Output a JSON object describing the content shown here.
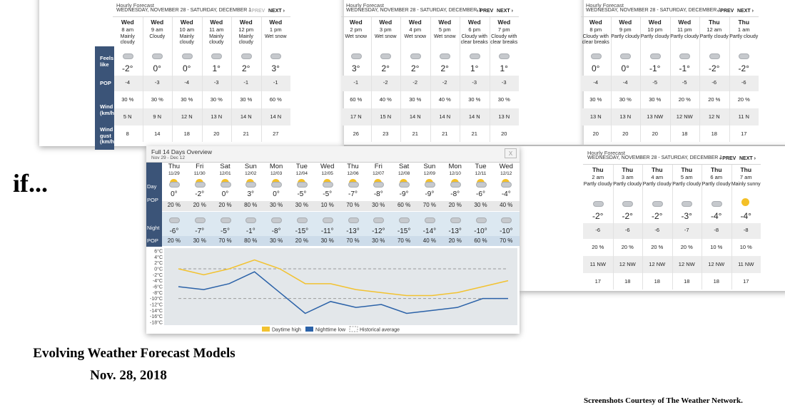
{
  "title_text": "if...",
  "caption": {
    "title": "Evolving Weather Forecast Models",
    "date": "Nov. 28, 2018",
    "credit": "Screenshots Courtesy of The Weather Network."
  },
  "hourly_panels": [
    {
      "heading": "Hourly Forecast",
      "range": "WEDNESDAY, NOVEMBER 28 - SATURDAY, DECEMBER 1",
      "prev": "‹ PREV",
      "next": "NEXT ›",
      "row_labels": [
        "Feels like",
        "POP",
        "Wind (km/h)",
        "Wind gust (km/h)"
      ],
      "columns": [
        {
          "day": "Wed",
          "time": "8 am",
          "condition": "Mainly cloudy",
          "temp": "-2°",
          "feels_like": "-4",
          "pop": "30 %",
          "wind": "5 N",
          "gust": "8"
        },
        {
          "day": "Wed",
          "time": "9 am",
          "condition": "Cloudy",
          "temp": "0°",
          "feels_like": "-3",
          "pop": "30 %",
          "wind": "9 N",
          "gust": "14"
        },
        {
          "day": "Wed",
          "time": "10 am",
          "condition": "Mainly cloudy",
          "temp": "0°",
          "feels_like": "-4",
          "pop": "30 %",
          "wind": "12 N",
          "gust": "18"
        },
        {
          "day": "Wed",
          "time": "11 am",
          "condition": "Mainly cloudy",
          "temp": "1°",
          "feels_like": "-3",
          "pop": "30 %",
          "wind": "13 N",
          "gust": "20"
        },
        {
          "day": "Wed",
          "time": "12 pm",
          "condition": "Mainly cloudy",
          "temp": "2°",
          "feels_like": "-1",
          "pop": "30 %",
          "wind": "14 N",
          "gust": "21"
        },
        {
          "day": "Wed",
          "time": "1 pm",
          "condition": "Wet snow",
          "temp": "3°",
          "feels_like": "-1",
          "pop": "60 %",
          "wind": "14 N",
          "gust": "27"
        }
      ]
    },
    {
      "heading": "Hourly Forecast",
      "range": "WEDNESDAY, NOVEMBER 28 - SATURDAY, DECEMBER 1",
      "prev": "‹ PREV",
      "next": "NEXT ›",
      "columns": [
        {
          "day": "Wed",
          "time": "2 pm",
          "condition": "Wet snow",
          "temp": "3°",
          "feels_like": "-1",
          "pop": "60 %",
          "wind": "17 N",
          "gust": "26"
        },
        {
          "day": "Wed",
          "time": "3 pm",
          "condition": "Wet snow",
          "temp": "2°",
          "feels_like": "-2",
          "pop": "40 %",
          "wind": "15 N",
          "gust": "23"
        },
        {
          "day": "Wed",
          "time": "4 pm",
          "condition": "Wet snow",
          "temp": "2°",
          "feels_like": "-2",
          "pop": "30 %",
          "wind": "14 N",
          "gust": "21"
        },
        {
          "day": "Wed",
          "time": "5 pm",
          "condition": "Wet snow",
          "temp": "2°",
          "feels_like": "-2",
          "pop": "40 %",
          "wind": "14 N",
          "gust": "21"
        },
        {
          "day": "Wed",
          "time": "6 pm",
          "condition": "Cloudy with clear breaks",
          "temp": "1°",
          "feels_like": "-3",
          "pop": "30 %",
          "wind": "14 N",
          "gust": "21"
        },
        {
          "day": "Wed",
          "time": "7 pm",
          "condition": "Cloudy with clear breaks",
          "temp": "1°",
          "feels_like": "-3",
          "pop": "30 %",
          "wind": "13 N",
          "gust": "20"
        }
      ]
    },
    {
      "heading": "Hourly Forecast",
      "range": "WEDNESDAY, NOVEMBER 28 - SATURDAY, DECEMBER 1",
      "prev": "‹ PREV",
      "next": "NEXT ›",
      "columns": [
        {
          "day": "Wed",
          "time": "8 pm",
          "condition": "Cloudy with clear breaks",
          "temp": "0°",
          "feels_like": "-4",
          "pop": "30 %",
          "wind": "13 N",
          "gust": "20"
        },
        {
          "day": "Wed",
          "time": "9 pm",
          "condition": "Partly cloudy",
          "temp": "0°",
          "feels_like": "-4",
          "pop": "30 %",
          "wind": "13 N",
          "gust": "20"
        },
        {
          "day": "Wed",
          "time": "10 pm",
          "condition": "Partly cloudy",
          "temp": "-1°",
          "feels_like": "-5",
          "pop": "30 %",
          "wind": "13 NW",
          "gust": "20"
        },
        {
          "day": "Wed",
          "time": "11 pm",
          "condition": "Partly cloudy",
          "temp": "-1°",
          "feels_like": "-5",
          "pop": "20 %",
          "wind": "12 NW",
          "gust": "18"
        },
        {
          "day": "Thu",
          "time": "12 am",
          "condition": "Partly cloudy",
          "temp": "-2°",
          "feels_like": "-6",
          "pop": "20 %",
          "wind": "12 N",
          "gust": "18"
        },
        {
          "day": "Thu",
          "time": "1 am",
          "condition": "Partly cloudy",
          "temp": "-2°",
          "feels_like": "-6",
          "pop": "20 %",
          "wind": "11 N",
          "gust": "17"
        }
      ]
    },
    {
      "heading": "Hourly Forecast",
      "range": "WEDNESDAY, NOVEMBER 28 - SATURDAY, DECEMBER 1",
      "prev": "‹ PREV",
      "next": "NEXT ›",
      "columns": [
        {
          "day": "Thu",
          "time": "2 am",
          "condition": "Partly cloudy",
          "temp": "-2°",
          "feels_like": "-6",
          "pop": "20 %",
          "wind": "11 NW",
          "gust": "17"
        },
        {
          "day": "Thu",
          "time": "3 am",
          "condition": "Partly cloudy",
          "temp": "-2°",
          "feels_like": "-6",
          "pop": "20 %",
          "wind": "12 NW",
          "gust": "18"
        },
        {
          "day": "Thu",
          "time": "4 am",
          "condition": "Partly cloudy",
          "temp": "-2°",
          "feels_like": "-6",
          "pop": "20 %",
          "wind": "12 NW",
          "gust": "18"
        },
        {
          "day": "Thu",
          "time": "5 am",
          "condition": "Partly cloudy",
          "temp": "-3°",
          "feels_like": "-7",
          "pop": "20 %",
          "wind": "12 NW",
          "gust": "18"
        },
        {
          "day": "Thu",
          "time": "6 am",
          "condition": "Partly cloudy",
          "temp": "-4°",
          "feels_like": "-8",
          "pop": "10 %",
          "wind": "12 NW",
          "gust": "18"
        },
        {
          "day": "Thu",
          "time": "7 am",
          "condition": "Mainly sunny",
          "temp": "-4°",
          "feels_like": "-8",
          "pop": "10 %",
          "wind": "11 NW",
          "gust": "17"
        }
      ]
    }
  ],
  "overview": {
    "title": "Full 14 Days Overview",
    "subtitle": "Nov 29 - Dec 12",
    "close": "X",
    "row_labels": [
      "Day",
      "POP",
      "Night",
      "POP"
    ],
    "columns": [
      {
        "day": "Thu",
        "date": "11/29",
        "day_temp": "0°",
        "day_pop": "20 %",
        "night_temp": "-6°",
        "night_pop": "20 %"
      },
      {
        "day": "Fri",
        "date": "11/30",
        "day_temp": "-2°",
        "day_pop": "20 %",
        "night_temp": "-7°",
        "night_pop": "30 %"
      },
      {
        "day": "Sat",
        "date": "12/01",
        "day_temp": "0°",
        "day_pop": "20 %",
        "night_temp": "-5°",
        "night_pop": "70 %"
      },
      {
        "day": "Sun",
        "date": "12/02",
        "day_temp": "3°",
        "day_pop": "80 %",
        "night_temp": "-1°",
        "night_pop": "80 %"
      },
      {
        "day": "Mon",
        "date": "12/03",
        "day_temp": "0°",
        "day_pop": "30 %",
        "night_temp": "-8°",
        "night_pop": "30 %"
      },
      {
        "day": "Tue",
        "date": "12/04",
        "day_temp": "-5°",
        "day_pop": "30 %",
        "night_temp": "-15°",
        "night_pop": "20 %"
      },
      {
        "day": "Wed",
        "date": "12/05",
        "day_temp": "-5°",
        "day_pop": "10 %",
        "night_temp": "-11°",
        "night_pop": "30 %"
      },
      {
        "day": "Thu",
        "date": "12/06",
        "day_temp": "-7°",
        "day_pop": "70 %",
        "night_temp": "-13°",
        "night_pop": "70 %"
      },
      {
        "day": "Fri",
        "date": "12/07",
        "day_temp": "-8°",
        "day_pop": "30 %",
        "night_temp": "-12°",
        "night_pop": "30 %"
      },
      {
        "day": "Sat",
        "date": "12/08",
        "day_temp": "-9°",
        "day_pop": "60 %",
        "night_temp": "-15°",
        "night_pop": "70 %"
      },
      {
        "day": "Sun",
        "date": "12/09",
        "day_temp": "-9°",
        "day_pop": "70 %",
        "night_temp": "-14°",
        "night_pop": "40 %"
      },
      {
        "day": "Mon",
        "date": "12/10",
        "day_temp": "-8°",
        "day_pop": "20 %",
        "night_temp": "-13°",
        "night_pop": "20 %"
      },
      {
        "day": "Tue",
        "date": "12/11",
        "day_temp": "-6°",
        "day_pop": "30 %",
        "night_temp": "-10°",
        "night_pop": "60 %"
      },
      {
        "day": "Wed",
        "date": "12/12",
        "day_temp": "-4°",
        "day_pop": "40 %",
        "night_temp": "-10°",
        "night_pop": "70 %"
      }
    ]
  },
  "chart_data": {
    "type": "line",
    "series": [
      {
        "name": "Daytime high",
        "color": "#f2c230",
        "values": [
          0,
          -2,
          0,
          3,
          0,
          -5,
          -5,
          -7,
          -8,
          -9,
          -9,
          -8,
          -6,
          -4
        ]
      },
      {
        "name": "Nighttime low",
        "color": "#2b62a8",
        "values": [
          -6,
          -7,
          -5,
          -1,
          -8,
          -15,
          -11,
          -13,
          -12,
          -15,
          -14,
          -13,
          -10,
          -10
        ]
      }
    ],
    "reference": {
      "name": "Historical average",
      "color": "#9a9a9a",
      "values": [
        0,
        -10
      ]
    },
    "ylim": [
      -18,
      6
    ],
    "yticks": [
      {
        "value": 6,
        "label": "6°C"
      },
      {
        "value": 4,
        "label": "4°C"
      },
      {
        "value": 2,
        "label": "2°C"
      },
      {
        "value": 0,
        "label": "0°C"
      },
      {
        "value": -2,
        "label": "-2°C"
      },
      {
        "value": -4,
        "label": "-4°C"
      },
      {
        "value": -6,
        "label": "-6°C"
      },
      {
        "value": -8,
        "label": "-8°C"
      },
      {
        "value": -10,
        "label": "-10°C"
      },
      {
        "value": -12,
        "label": "-12°C"
      },
      {
        "value": -14,
        "label": "-14°C"
      },
      {
        "value": -16,
        "label": "-16°C"
      },
      {
        "value": -18,
        "label": "-18°C"
      }
    ]
  }
}
